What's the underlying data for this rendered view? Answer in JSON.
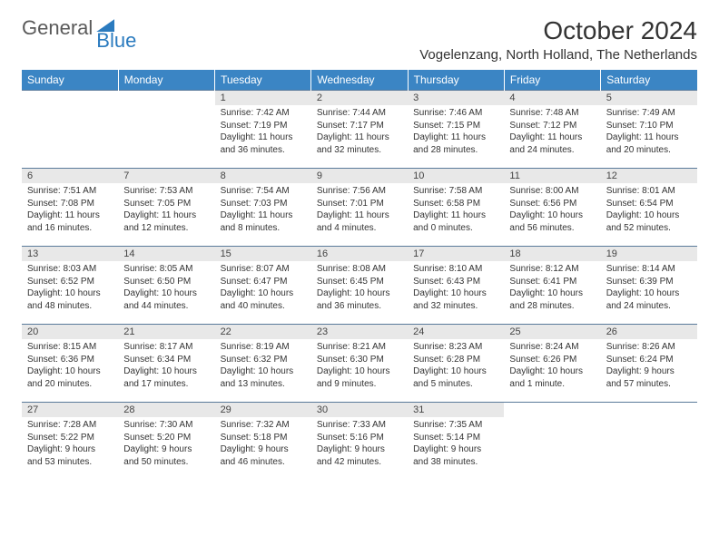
{
  "brand": {
    "part1": "General",
    "part2": "Blue"
  },
  "title": "October 2024",
  "location": "Vogelenzang, North Holland, The Netherlands",
  "colors": {
    "header_bg": "#3b85c4",
    "header_fg": "#ffffff",
    "daynum_bg": "#e8e8e8",
    "rule": "#5a7a9a",
    "brand_blue": "#2b7bbf",
    "brand_gray": "#5a5a5a"
  },
  "fonts": {
    "title_size": 28,
    "location_size": 15,
    "weekday_size": 12,
    "daynum_size": 11,
    "body_size": 10
  },
  "weekdays": [
    "Sunday",
    "Monday",
    "Tuesday",
    "Wednesday",
    "Thursday",
    "Friday",
    "Saturday"
  ],
  "weeks": [
    [
      null,
      null,
      {
        "n": "1",
        "sr": "7:42 AM",
        "ss": "7:19 PM",
        "dl": "11 hours and 36 minutes."
      },
      {
        "n": "2",
        "sr": "7:44 AM",
        "ss": "7:17 PM",
        "dl": "11 hours and 32 minutes."
      },
      {
        "n": "3",
        "sr": "7:46 AM",
        "ss": "7:15 PM",
        "dl": "11 hours and 28 minutes."
      },
      {
        "n": "4",
        "sr": "7:48 AM",
        "ss": "7:12 PM",
        "dl": "11 hours and 24 minutes."
      },
      {
        "n": "5",
        "sr": "7:49 AM",
        "ss": "7:10 PM",
        "dl": "11 hours and 20 minutes."
      }
    ],
    [
      {
        "n": "6",
        "sr": "7:51 AM",
        "ss": "7:08 PM",
        "dl": "11 hours and 16 minutes."
      },
      {
        "n": "7",
        "sr": "7:53 AM",
        "ss": "7:05 PM",
        "dl": "11 hours and 12 minutes."
      },
      {
        "n": "8",
        "sr": "7:54 AM",
        "ss": "7:03 PM",
        "dl": "11 hours and 8 minutes."
      },
      {
        "n": "9",
        "sr": "7:56 AM",
        "ss": "7:01 PM",
        "dl": "11 hours and 4 minutes."
      },
      {
        "n": "10",
        "sr": "7:58 AM",
        "ss": "6:58 PM",
        "dl": "11 hours and 0 minutes."
      },
      {
        "n": "11",
        "sr": "8:00 AM",
        "ss": "6:56 PM",
        "dl": "10 hours and 56 minutes."
      },
      {
        "n": "12",
        "sr": "8:01 AM",
        "ss": "6:54 PM",
        "dl": "10 hours and 52 minutes."
      }
    ],
    [
      {
        "n": "13",
        "sr": "8:03 AM",
        "ss": "6:52 PM",
        "dl": "10 hours and 48 minutes."
      },
      {
        "n": "14",
        "sr": "8:05 AM",
        "ss": "6:50 PM",
        "dl": "10 hours and 44 minutes."
      },
      {
        "n": "15",
        "sr": "8:07 AM",
        "ss": "6:47 PM",
        "dl": "10 hours and 40 minutes."
      },
      {
        "n": "16",
        "sr": "8:08 AM",
        "ss": "6:45 PM",
        "dl": "10 hours and 36 minutes."
      },
      {
        "n": "17",
        "sr": "8:10 AM",
        "ss": "6:43 PM",
        "dl": "10 hours and 32 minutes."
      },
      {
        "n": "18",
        "sr": "8:12 AM",
        "ss": "6:41 PM",
        "dl": "10 hours and 28 minutes."
      },
      {
        "n": "19",
        "sr": "8:14 AM",
        "ss": "6:39 PM",
        "dl": "10 hours and 24 minutes."
      }
    ],
    [
      {
        "n": "20",
        "sr": "8:15 AM",
        "ss": "6:36 PM",
        "dl": "10 hours and 20 minutes."
      },
      {
        "n": "21",
        "sr": "8:17 AM",
        "ss": "6:34 PM",
        "dl": "10 hours and 17 minutes."
      },
      {
        "n": "22",
        "sr": "8:19 AM",
        "ss": "6:32 PM",
        "dl": "10 hours and 13 minutes."
      },
      {
        "n": "23",
        "sr": "8:21 AM",
        "ss": "6:30 PM",
        "dl": "10 hours and 9 minutes."
      },
      {
        "n": "24",
        "sr": "8:23 AM",
        "ss": "6:28 PM",
        "dl": "10 hours and 5 minutes."
      },
      {
        "n": "25",
        "sr": "8:24 AM",
        "ss": "6:26 PM",
        "dl": "10 hours and 1 minute."
      },
      {
        "n": "26",
        "sr": "8:26 AM",
        "ss": "6:24 PM",
        "dl": "9 hours and 57 minutes."
      }
    ],
    [
      {
        "n": "27",
        "sr": "7:28 AM",
        "ss": "5:22 PM",
        "dl": "9 hours and 53 minutes."
      },
      {
        "n": "28",
        "sr": "7:30 AM",
        "ss": "5:20 PM",
        "dl": "9 hours and 50 minutes."
      },
      {
        "n": "29",
        "sr": "7:32 AM",
        "ss": "5:18 PM",
        "dl": "9 hours and 46 minutes."
      },
      {
        "n": "30",
        "sr": "7:33 AM",
        "ss": "5:16 PM",
        "dl": "9 hours and 42 minutes."
      },
      {
        "n": "31",
        "sr": "7:35 AM",
        "ss": "5:14 PM",
        "dl": "9 hours and 38 minutes."
      },
      null,
      null
    ]
  ],
  "labels": {
    "sunrise": "Sunrise: ",
    "sunset": "Sunset: ",
    "daylight": "Daylight: "
  }
}
